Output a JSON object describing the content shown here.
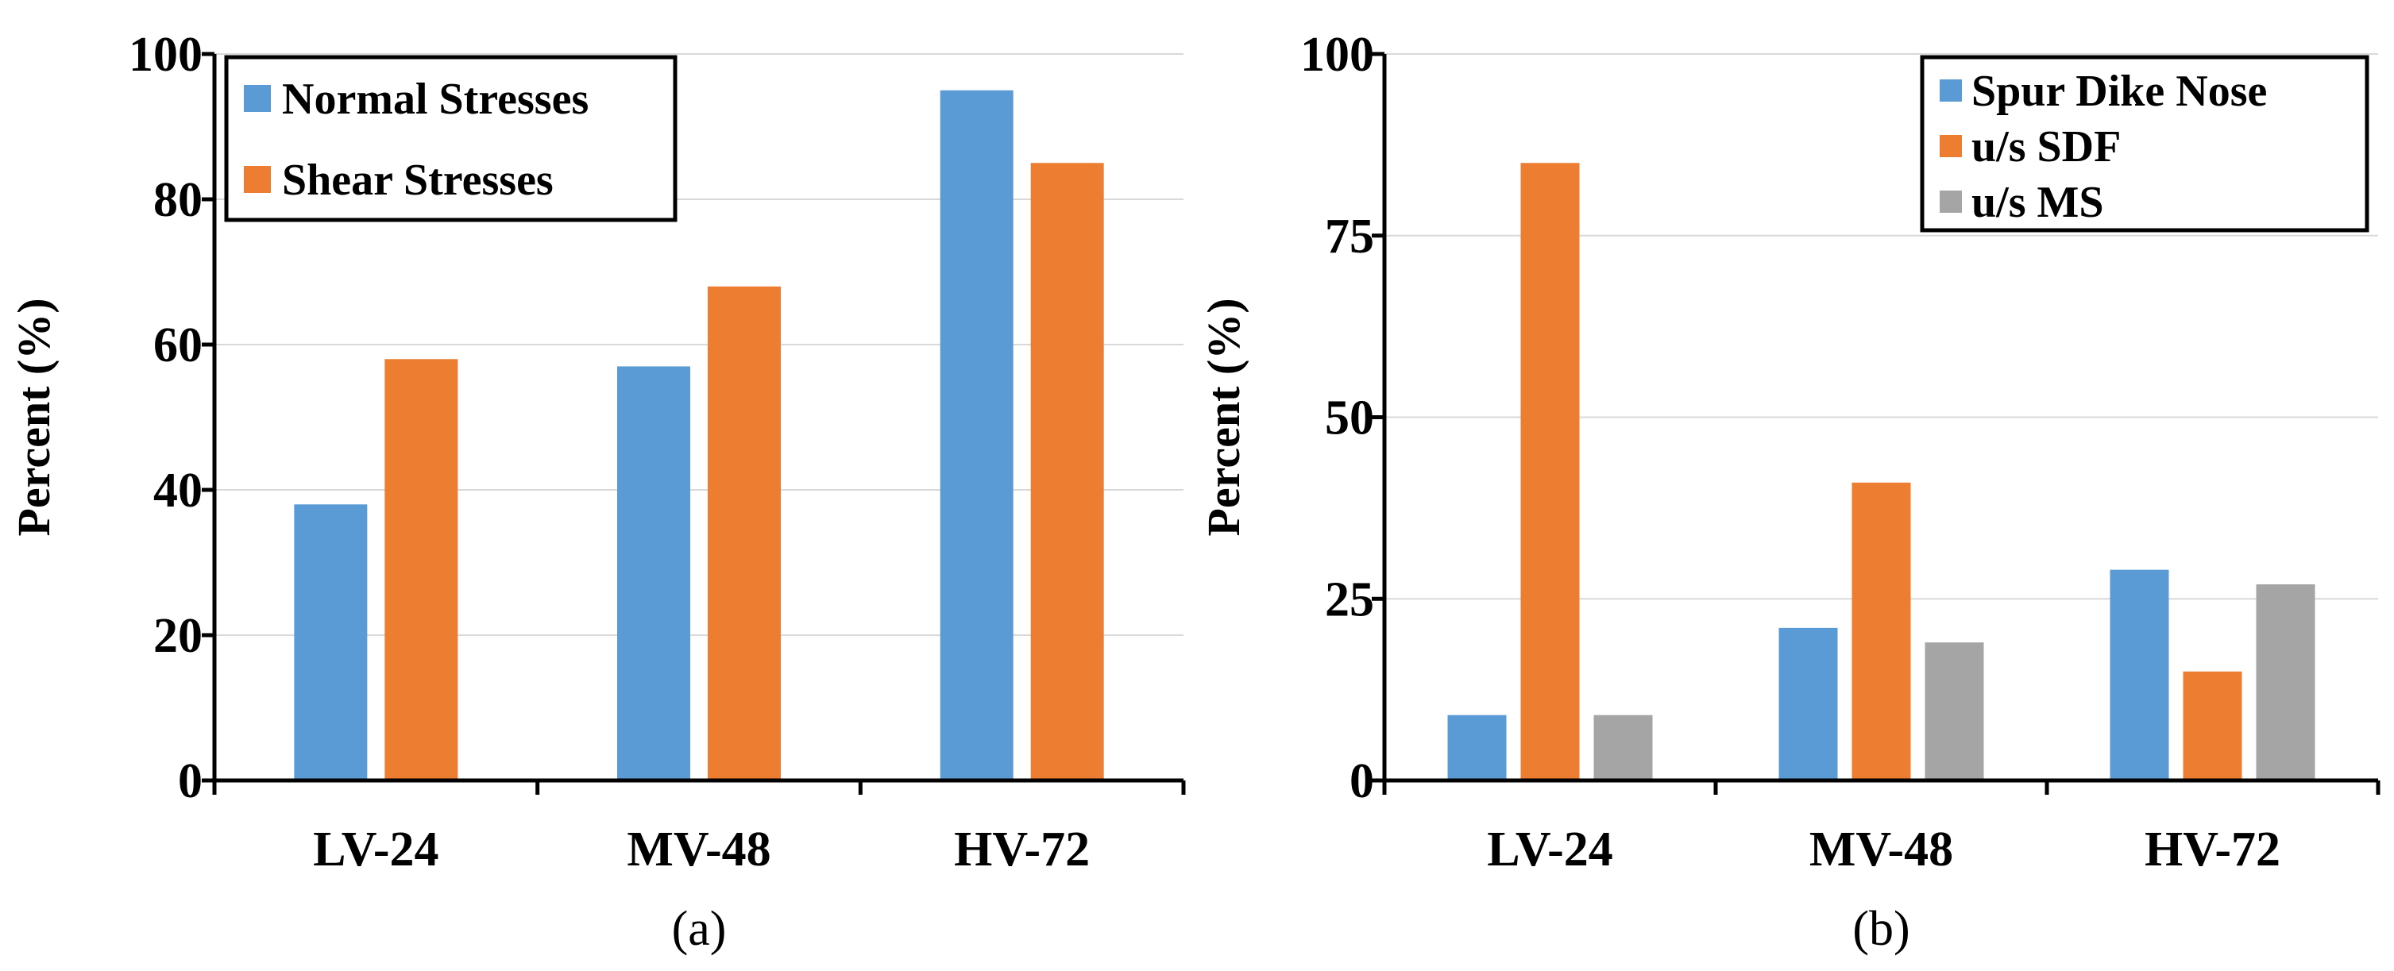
{
  "colors": {
    "blue": "#5b9bd5",
    "orange": "#ed7d31",
    "gray": "#a5a5a5"
  },
  "chart_data": [
    {
      "type": "bar",
      "panel_label": "(a)",
      "title": "",
      "xlabel": "",
      "ylabel": "Percent (%)",
      "categories": [
        "LV-24",
        "MV-48",
        "HV-72"
      ],
      "ylim": [
        0,
        100
      ],
      "yticks": [
        0,
        20,
        40,
        60,
        80,
        100
      ],
      "grid": true,
      "legend_position": "top-left",
      "series": [
        {
          "name": "Normal Stresses",
          "color": "#5b9bd5",
          "values": [
            38,
            57,
            95
          ]
        },
        {
          "name": "Shear Stresses",
          "color": "#ed7d31",
          "values": [
            58,
            68,
            85
          ]
        }
      ]
    },
    {
      "type": "bar",
      "panel_label": "(b)",
      "title": "",
      "xlabel": "",
      "ylabel": "Percent (%)",
      "categories": [
        "LV-24",
        "MV-48",
        "HV-72"
      ],
      "ylim": [
        0,
        100
      ],
      "yticks": [
        0,
        25,
        50,
        75,
        100
      ],
      "grid": true,
      "legend_position": "top-right",
      "series": [
        {
          "name": "Spur Dike Nose",
          "color": "#5b9bd5",
          "values": [
            9,
            21,
            29
          ]
        },
        {
          "name": "u/s SDF",
          "color": "#ed7d31",
          "values": [
            85,
            41,
            15
          ]
        },
        {
          "name": "u/s MS",
          "color": "#a5a5a5",
          "values": [
            9,
            19,
            27
          ]
        }
      ]
    }
  ]
}
